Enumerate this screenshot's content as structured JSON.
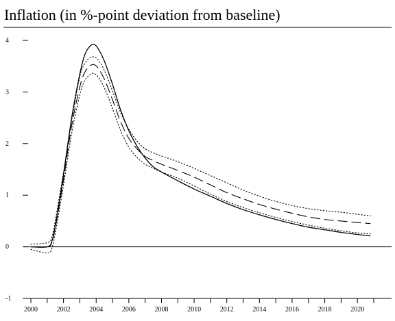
{
  "chart_data": {
    "type": "line",
    "title": "Inflation (in %-point deviation from baseline)",
    "xlabel": "",
    "ylabel": "",
    "xlim": [
      2000,
      2021
    ],
    "ylim": [
      -1,
      4
    ],
    "xticks": [
      2000,
      2001,
      2002,
      2003,
      2004,
      2005,
      2006,
      2007,
      2008,
      2009,
      2010,
      2011,
      2012,
      2013,
      2014,
      2015,
      2016,
      2017,
      2018,
      2019,
      2020,
      2021
    ],
    "xtick_labels": [
      "2000",
      "",
      "2002",
      "",
      "2004",
      "",
      "2006",
      "",
      "2008",
      "",
      "2010",
      "",
      "2012",
      "",
      "2014",
      "",
      "2016",
      "",
      "2018",
      "",
      "2020",
      ""
    ],
    "yticks": [
      -1,
      0,
      1,
      2,
      3,
      4
    ],
    "ytick_labels": [
      "-1",
      "0",
      "1",
      "2",
      "3",
      "4"
    ],
    "zero_line": true,
    "grid": false,
    "legend": "none",
    "series": [
      {
        "style": "solid",
        "x": [
          2000,
          2001,
          2001.3,
          2001.6,
          2002,
          2002.5,
          2003,
          2003.3,
          2003.6,
          2003.85,
          2004.1,
          2004.5,
          2005,
          2005.5,
          2006,
          2006.5,
          2007,
          2007.5,
          2008,
          2009,
          2010,
          2011,
          2012,
          2013,
          2014,
          2015,
          2016,
          2017,
          2018,
          2019,
          2020,
          2020.8
        ],
        "values": [
          0,
          0,
          0.12,
          0.6,
          1.4,
          2.5,
          3.35,
          3.72,
          3.88,
          3.92,
          3.85,
          3.6,
          3.15,
          2.65,
          2.25,
          1.95,
          1.72,
          1.55,
          1.45,
          1.28,
          1.12,
          0.98,
          0.84,
          0.72,
          0.62,
          0.53,
          0.45,
          0.38,
          0.33,
          0.28,
          0.24,
          0.21
        ]
      },
      {
        "style": "dashed",
        "x": [
          2000,
          2001,
          2001.3,
          2001.6,
          2002,
          2002.5,
          2003,
          2003.3,
          2003.6,
          2003.85,
          2004.1,
          2004.5,
          2005,
          2005.5,
          2006,
          2006.5,
          2007,
          2007.5,
          2008,
          2009,
          2010,
          2011,
          2012,
          2013,
          2014,
          2015,
          2016,
          2017,
          2018,
          2019,
          2020,
          2020.8
        ],
        "values": [
          0,
          0,
          0.1,
          0.55,
          1.3,
          2.35,
          3.1,
          3.38,
          3.5,
          3.53,
          3.47,
          3.25,
          2.85,
          2.42,
          2.1,
          1.9,
          1.75,
          1.67,
          1.6,
          1.48,
          1.35,
          1.2,
          1.05,
          0.93,
          0.82,
          0.73,
          0.65,
          0.58,
          0.53,
          0.5,
          0.47,
          0.45
        ]
      },
      {
        "style": "dotted",
        "x": [
          2000,
          2001,
          2001.3,
          2001.6,
          2002,
          2002.5,
          2003,
          2003.3,
          2003.6,
          2003.85,
          2004.1,
          2004.5,
          2005,
          2005.5,
          2006,
          2006.5,
          2007,
          2007.5,
          2008,
          2009,
          2010,
          2011,
          2012,
          2013,
          2014,
          2015,
          2016,
          2017,
          2018,
          2019,
          2020,
          2020.8
        ],
        "values": [
          0.05,
          0.08,
          0.2,
          0.7,
          1.45,
          2.45,
          3.3,
          3.55,
          3.66,
          3.68,
          3.63,
          3.42,
          3.02,
          2.6,
          2.28,
          2.05,
          1.9,
          1.82,
          1.76,
          1.65,
          1.52,
          1.38,
          1.24,
          1.1,
          0.98,
          0.88,
          0.8,
          0.74,
          0.7,
          0.67,
          0.63,
          0.6
        ]
      },
      {
        "style": "dotted",
        "x": [
          2000,
          2001,
          2001.3,
          2001.6,
          2002,
          2002.5,
          2003,
          2003.3,
          2003.6,
          2003.85,
          2004.1,
          2004.5,
          2005,
          2005.5,
          2006,
          2006.5,
          2007,
          2007.5,
          2008,
          2009,
          2010,
          2011,
          2012,
          2013,
          2014,
          2015,
          2016,
          2017,
          2018,
          2019,
          2020,
          2020.8
        ],
        "values": [
          -0.05,
          -0.12,
          -0.02,
          0.45,
          1.2,
          2.2,
          2.95,
          3.22,
          3.33,
          3.36,
          3.3,
          3.08,
          2.68,
          2.25,
          1.93,
          1.73,
          1.6,
          1.52,
          1.45,
          1.33,
          1.18,
          1.02,
          0.88,
          0.76,
          0.66,
          0.57,
          0.49,
          0.42,
          0.36,
          0.31,
          0.27,
          0.25
        ]
      }
    ]
  }
}
